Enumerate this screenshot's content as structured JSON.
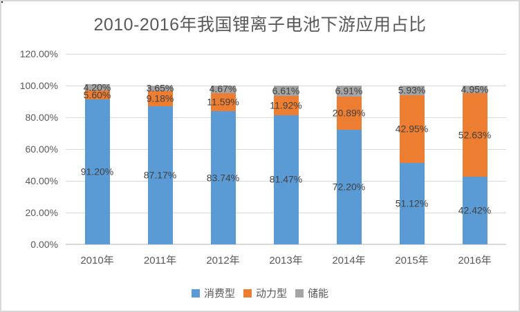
{
  "chart_data": {
    "type": "bar",
    "stacked": true,
    "title": "2010-2016年我国锂离子电池下游应用占比",
    "categories": [
      "2010年",
      "2011年",
      "2012年",
      "2013年",
      "2014年",
      "2015年",
      "2016年"
    ],
    "series": [
      {
        "name": "消费型",
        "key": "consumer",
        "color": "#5B9BD5",
        "values": [
          91.2,
          87.17,
          83.74,
          81.47,
          72.2,
          51.12,
          42.42
        ],
        "labels": [
          "91.20%",
          "87.17%",
          "83.74%",
          "81.47%",
          "72.20%",
          "51.12%",
          "42.42%"
        ]
      },
      {
        "name": "动力型",
        "key": "power",
        "color": "#ED7D31",
        "values": [
          5.6,
          9.18,
          11.59,
          11.92,
          20.89,
          42.95,
          52.63
        ],
        "labels": [
          "5.60%",
          "9.18%",
          "11.59%",
          "11.92%",
          "20.89%",
          "42.95%",
          "52.63%"
        ]
      },
      {
        "name": "储能",
        "key": "storage",
        "color": "#A5A5A5",
        "values": [
          4.2,
          3.65,
          4.67,
          6.61,
          6.91,
          5.93,
          4.95
        ],
        "labels": [
          "4.20%",
          "3.65%",
          "4.67%",
          "6.61%",
          "6.91%",
          "5.93%",
          "4.95%"
        ]
      }
    ],
    "y_axis": {
      "ticks": [
        "120.00%",
        "100.00%",
        "80.00%",
        "60.00%",
        "40.00%",
        "20.00%",
        "0.00%"
      ],
      "min": 0,
      "max": 120,
      "step": 20,
      "grid": true
    },
    "legend": [
      "消费型",
      "动力型",
      "储能"
    ],
    "legend_position": "bottom",
    "colors": {
      "gridline": "#D9D9D9",
      "axis_text": "#595959",
      "data_label_text": "#404040",
      "frame_border": "#D9D9D9"
    }
  }
}
